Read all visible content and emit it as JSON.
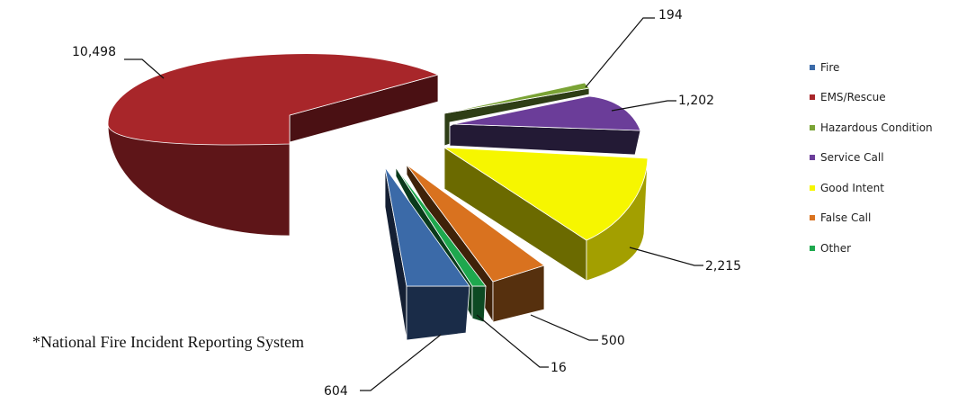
{
  "chart_data": {
    "type": "pie",
    "three_d": true,
    "exploded": true,
    "legend_position": "right",
    "series": [
      {
        "name": "Fire",
        "value": 604,
        "label": "604",
        "color": "#3b6aa8",
        "dark": "#1a2c48"
      },
      {
        "name": "EMS/Rescue",
        "value": 10498,
        "label": "10,498",
        "color": "#a8262a",
        "dark": "#4a1013"
      },
      {
        "name": "Hazardous Condition",
        "value": 194,
        "label": "194",
        "color": "#7aa335",
        "dark": "#2e3e16"
      },
      {
        "name": "Service Call",
        "value": 1202,
        "label": "1,202",
        "color": "#6b3d99",
        "dark": "#231a35"
      },
      {
        "name": "Good Intent",
        "value": 2215,
        "label": "2,215",
        "color": "#f6f600",
        "dark": "#6b6a00"
      },
      {
        "name": "False Call",
        "value": 500,
        "label": "500",
        "color": "#d9721f",
        "dark": "#56300e"
      },
      {
        "name": "Other",
        "value": 16,
        "label": "16",
        "color": "#1ea84e",
        "dark": "#0d4a23"
      }
    ]
  },
  "footnote": "*National Fire Incident Reporting System"
}
